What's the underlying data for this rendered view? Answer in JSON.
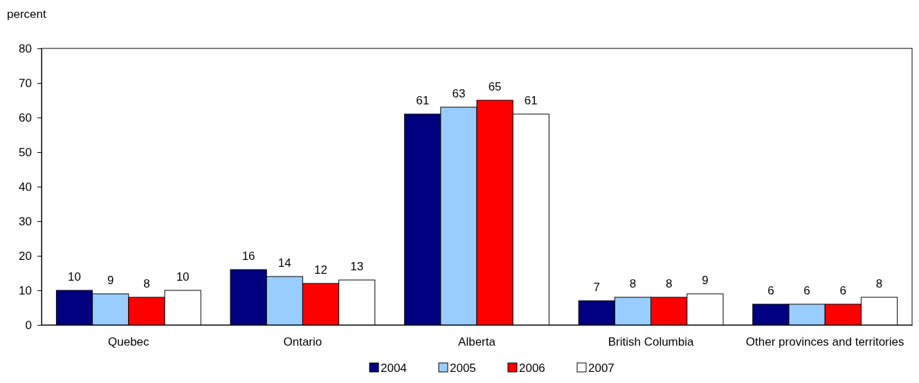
{
  "chart_data": {
    "type": "bar",
    "ylabel": "percent",
    "categories": [
      "Quebec",
      "Ontario",
      "Alberta",
      "British Columbia",
      "Other provinces and territories"
    ],
    "series": [
      {
        "name": "2004",
        "color": "#000080",
        "values": [
          10,
          16,
          61,
          7,
          6
        ]
      },
      {
        "name": "2005",
        "color": "#99ccff",
        "values": [
          9,
          14,
          63,
          8,
          6
        ]
      },
      {
        "name": "2006",
        "color": "#ff0000",
        "values": [
          8,
          12,
          65,
          8,
          6
        ]
      },
      {
        "name": "2007",
        "color": "#ffffff",
        "values": [
          10,
          13,
          61,
          9,
          8
        ]
      }
    ],
    "ylim": [
      0,
      80
    ],
    "yticks": [
      0,
      10,
      20,
      30,
      40,
      50,
      60,
      70,
      80
    ],
    "grid": false,
    "legend": "bottom",
    "data_labels": true
  }
}
